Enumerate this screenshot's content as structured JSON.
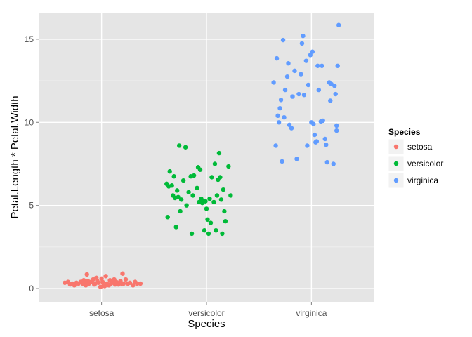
{
  "chart_data": {
    "type": "scatter",
    "title": "",
    "xlabel": "Species",
    "ylabel": "Petal.Length * Petal.Width",
    "categories": [
      "setosa",
      "versicolor",
      "virginica"
    ],
    "ylim": [
      -0.8,
      16.6
    ],
    "yticks": [
      0,
      5,
      10,
      15
    ],
    "grid": true,
    "legend": {
      "title": "Species",
      "position": "right"
    },
    "series": [
      {
        "name": "setosa",
        "color": "#F8766D",
        "points": [
          [
            0.65,
            0.35
          ],
          [
            0.68,
            0.4
          ],
          [
            0.7,
            0.25
          ],
          [
            0.72,
            0.3
          ],
          [
            0.74,
            0.2
          ],
          [
            0.76,
            0.35
          ],
          [
            0.78,
            0.3
          ],
          [
            0.8,
            0.4
          ],
          [
            0.82,
            0.3
          ],
          [
            0.83,
            0.5
          ],
          [
            0.84,
            0.35
          ],
          [
            0.85,
            0.2
          ],
          [
            0.86,
            0.85
          ],
          [
            0.87,
            0.45
          ],
          [
            0.88,
            0.3
          ],
          [
            0.9,
            0.4
          ],
          [
            0.92,
            0.55
          ],
          [
            0.93,
            0.25
          ],
          [
            0.94,
            0.3
          ],
          [
            0.95,
            0.65
          ],
          [
            0.96,
            0.45
          ],
          [
            0.97,
            0.35
          ],
          [
            0.99,
            0.1
          ],
          [
            1.0,
            0.6
          ],
          [
            1.01,
            0.4
          ],
          [
            1.02,
            0.2
          ],
          [
            1.03,
            0.15
          ],
          [
            1.04,
            0.75
          ],
          [
            1.05,
            0.3
          ],
          [
            1.06,
            0.25
          ],
          [
            1.07,
            0.2
          ],
          [
            1.08,
            0.5
          ],
          [
            1.09,
            0.3
          ],
          [
            1.1,
            0.35
          ],
          [
            1.12,
            0.55
          ],
          [
            1.13,
            0.25
          ],
          [
            1.14,
            0.4
          ],
          [
            1.15,
            0.3
          ],
          [
            1.16,
            0.25
          ],
          [
            1.18,
            0.45
          ],
          [
            1.19,
            0.3
          ],
          [
            1.2,
            0.9
          ],
          [
            1.21,
            0.3
          ],
          [
            1.23,
            0.55
          ],
          [
            1.25,
            0.3
          ],
          [
            1.27,
            0.35
          ],
          [
            1.3,
            0.2
          ],
          [
            1.32,
            0.4
          ],
          [
            1.34,
            0.3
          ],
          [
            1.37,
            0.3
          ]
        ]
      },
      {
        "name": "versicolor",
        "color": "#00BA38",
        "points": [
          [
            1.62,
            6.3
          ],
          [
            1.63,
            4.3
          ],
          [
            1.64,
            6.15
          ],
          [
            1.65,
            7.05
          ],
          [
            1.67,
            6.2
          ],
          [
            1.68,
            5.6
          ],
          [
            1.69,
            6.75
          ],
          [
            1.7,
            5.45
          ],
          [
            1.71,
            3.7
          ],
          [
            1.72,
            5.9
          ],
          [
            1.73,
            5.5
          ],
          [
            1.74,
            8.6
          ],
          [
            1.75,
            4.65
          ],
          [
            1.76,
            5.35
          ],
          [
            1.78,
            6.5
          ],
          [
            1.8,
            8.5
          ],
          [
            1.81,
            5.0
          ],
          [
            1.83,
            5.8
          ],
          [
            1.85,
            6.75
          ],
          [
            1.86,
            3.3
          ],
          [
            1.87,
            5.6
          ],
          [
            1.88,
            6.8
          ],
          [
            1.91,
            6.05
          ],
          [
            1.92,
            7.3
          ],
          [
            1.93,
            5.2
          ],
          [
            1.94,
            7.15
          ],
          [
            1.95,
            5.4
          ],
          [
            1.96,
            5.15
          ],
          [
            1.97,
            5.25
          ],
          [
            1.98,
            3.5
          ],
          [
            1.99,
            5.25
          ],
          [
            2.0,
            4.8
          ],
          [
            2.01,
            4.15
          ],
          [
            2.02,
            3.3
          ],
          [
            2.03,
            5.4
          ],
          [
            2.04,
            3.95
          ],
          [
            2.05,
            6.7
          ],
          [
            2.07,
            5.2
          ],
          [
            2.08,
            7.5
          ],
          [
            2.09,
            3.5
          ],
          [
            2.1,
            5.6
          ],
          [
            2.11,
            6.55
          ],
          [
            2.12,
            8.15
          ],
          [
            2.13,
            6.7
          ],
          [
            2.14,
            5.35
          ],
          [
            2.15,
            3.3
          ],
          [
            2.16,
            5.95
          ],
          [
            2.17,
            4.65
          ],
          [
            2.18,
            4.05
          ],
          [
            2.21,
            7.35
          ],
          [
            2.23,
            5.6
          ]
        ]
      },
      {
        "name": "virginica",
        "color": "#619CFF",
        "points": [
          [
            2.64,
            12.4
          ],
          [
            2.66,
            8.6
          ],
          [
            2.67,
            13.85
          ],
          [
            2.68,
            10.4
          ],
          [
            2.69,
            10.0
          ],
          [
            2.7,
            10.85
          ],
          [
            2.71,
            11.35
          ],
          [
            2.72,
            7.65
          ],
          [
            2.73,
            14.95
          ],
          [
            2.74,
            10.3
          ],
          [
            2.75,
            11.95
          ],
          [
            2.77,
            12.75
          ],
          [
            2.78,
            13.55
          ],
          [
            2.79,
            9.85
          ],
          [
            2.81,
            9.65
          ],
          [
            2.82,
            11.55
          ],
          [
            2.84,
            13.1
          ],
          [
            2.86,
            7.8
          ],
          [
            2.88,
            11.7
          ],
          [
            2.9,
            12.9
          ],
          [
            2.91,
            14.75
          ],
          [
            2.92,
            15.2
          ],
          [
            2.93,
            11.65
          ],
          [
            2.95,
            13.7
          ],
          [
            2.96,
            8.6
          ],
          [
            2.97,
            12.25
          ],
          [
            2.99,
            14.05
          ],
          [
            3.0,
            10.0
          ],
          [
            3.01,
            14.25
          ],
          [
            3.02,
            9.9
          ],
          [
            3.03,
            9.25
          ],
          [
            3.04,
            8.8
          ],
          [
            3.05,
            8.85
          ],
          [
            3.06,
            13.4
          ],
          [
            3.07,
            11.95
          ],
          [
            3.09,
            10.05
          ],
          [
            3.1,
            13.4
          ],
          [
            3.11,
            10.1
          ],
          [
            3.13,
            9.0
          ],
          [
            3.14,
            8.65
          ],
          [
            3.15,
            7.6
          ],
          [
            3.17,
            12.4
          ],
          [
            3.18,
            11.3
          ],
          [
            3.19,
            12.3
          ],
          [
            3.21,
            7.5
          ],
          [
            3.22,
            12.2
          ],
          [
            3.23,
            11.7
          ],
          [
            3.24,
            9.8
          ],
          [
            3.25,
            13.4
          ],
          [
            3.26,
            15.85
          ],
          [
            3.24,
            9.5
          ]
        ]
      }
    ]
  }
}
